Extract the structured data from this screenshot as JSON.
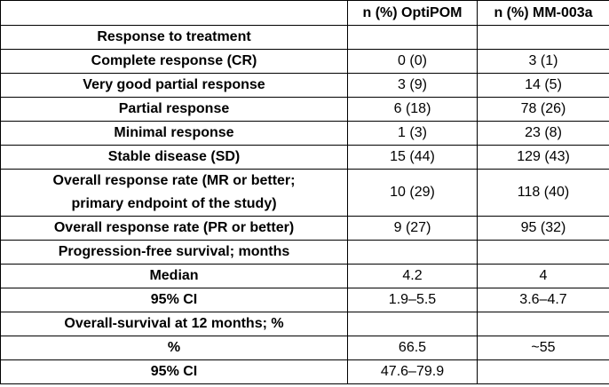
{
  "table": {
    "header": {
      "optipom": "n (%) OptiPOM",
      "mm003a": "n (%) MM-003a"
    },
    "rows": [
      {
        "label": "Response to treatment"
      },
      {
        "label": "Complete response (CR)",
        "optipom": "0 (0)",
        "mm003a": "3 (1)"
      },
      {
        "label": "Very good partial response",
        "optipom": "3 (9)",
        "mm003a": "14 (5)"
      },
      {
        "label": "Partial response",
        "optipom": "6 (18)",
        "mm003a": "78 (26)"
      },
      {
        "label": "Minimal response",
        "optipom": "1 (3)",
        "mm003a": "23 (8)"
      },
      {
        "label": "Stable disease (SD)",
        "optipom": "15 (44)",
        "mm003a": "129 (43)"
      },
      {
        "label": "Overall response rate (MR or better; primary endpoint of the study)",
        "optipom": "10 (29)",
        "mm003a": "118 (40)"
      },
      {
        "label": "Overall response rate (PR or better)",
        "optipom": "9 (27)",
        "mm003a": "95 (32)"
      },
      {
        "label": "Progression-free survival; months"
      },
      {
        "label": "Median",
        "optipom": "4.2",
        "mm003a": "4"
      },
      {
        "label": "95% CI",
        "optipom": "1.9–5.5",
        "mm003a": "3.6–4.7"
      },
      {
        "label": "Overall-survival at 12 months; %"
      },
      {
        "label": "%",
        "optipom": "66.5",
        "mm003a": "~55"
      },
      {
        "label": "95% CI",
        "optipom": "47.6–79.9"
      }
    ]
  }
}
